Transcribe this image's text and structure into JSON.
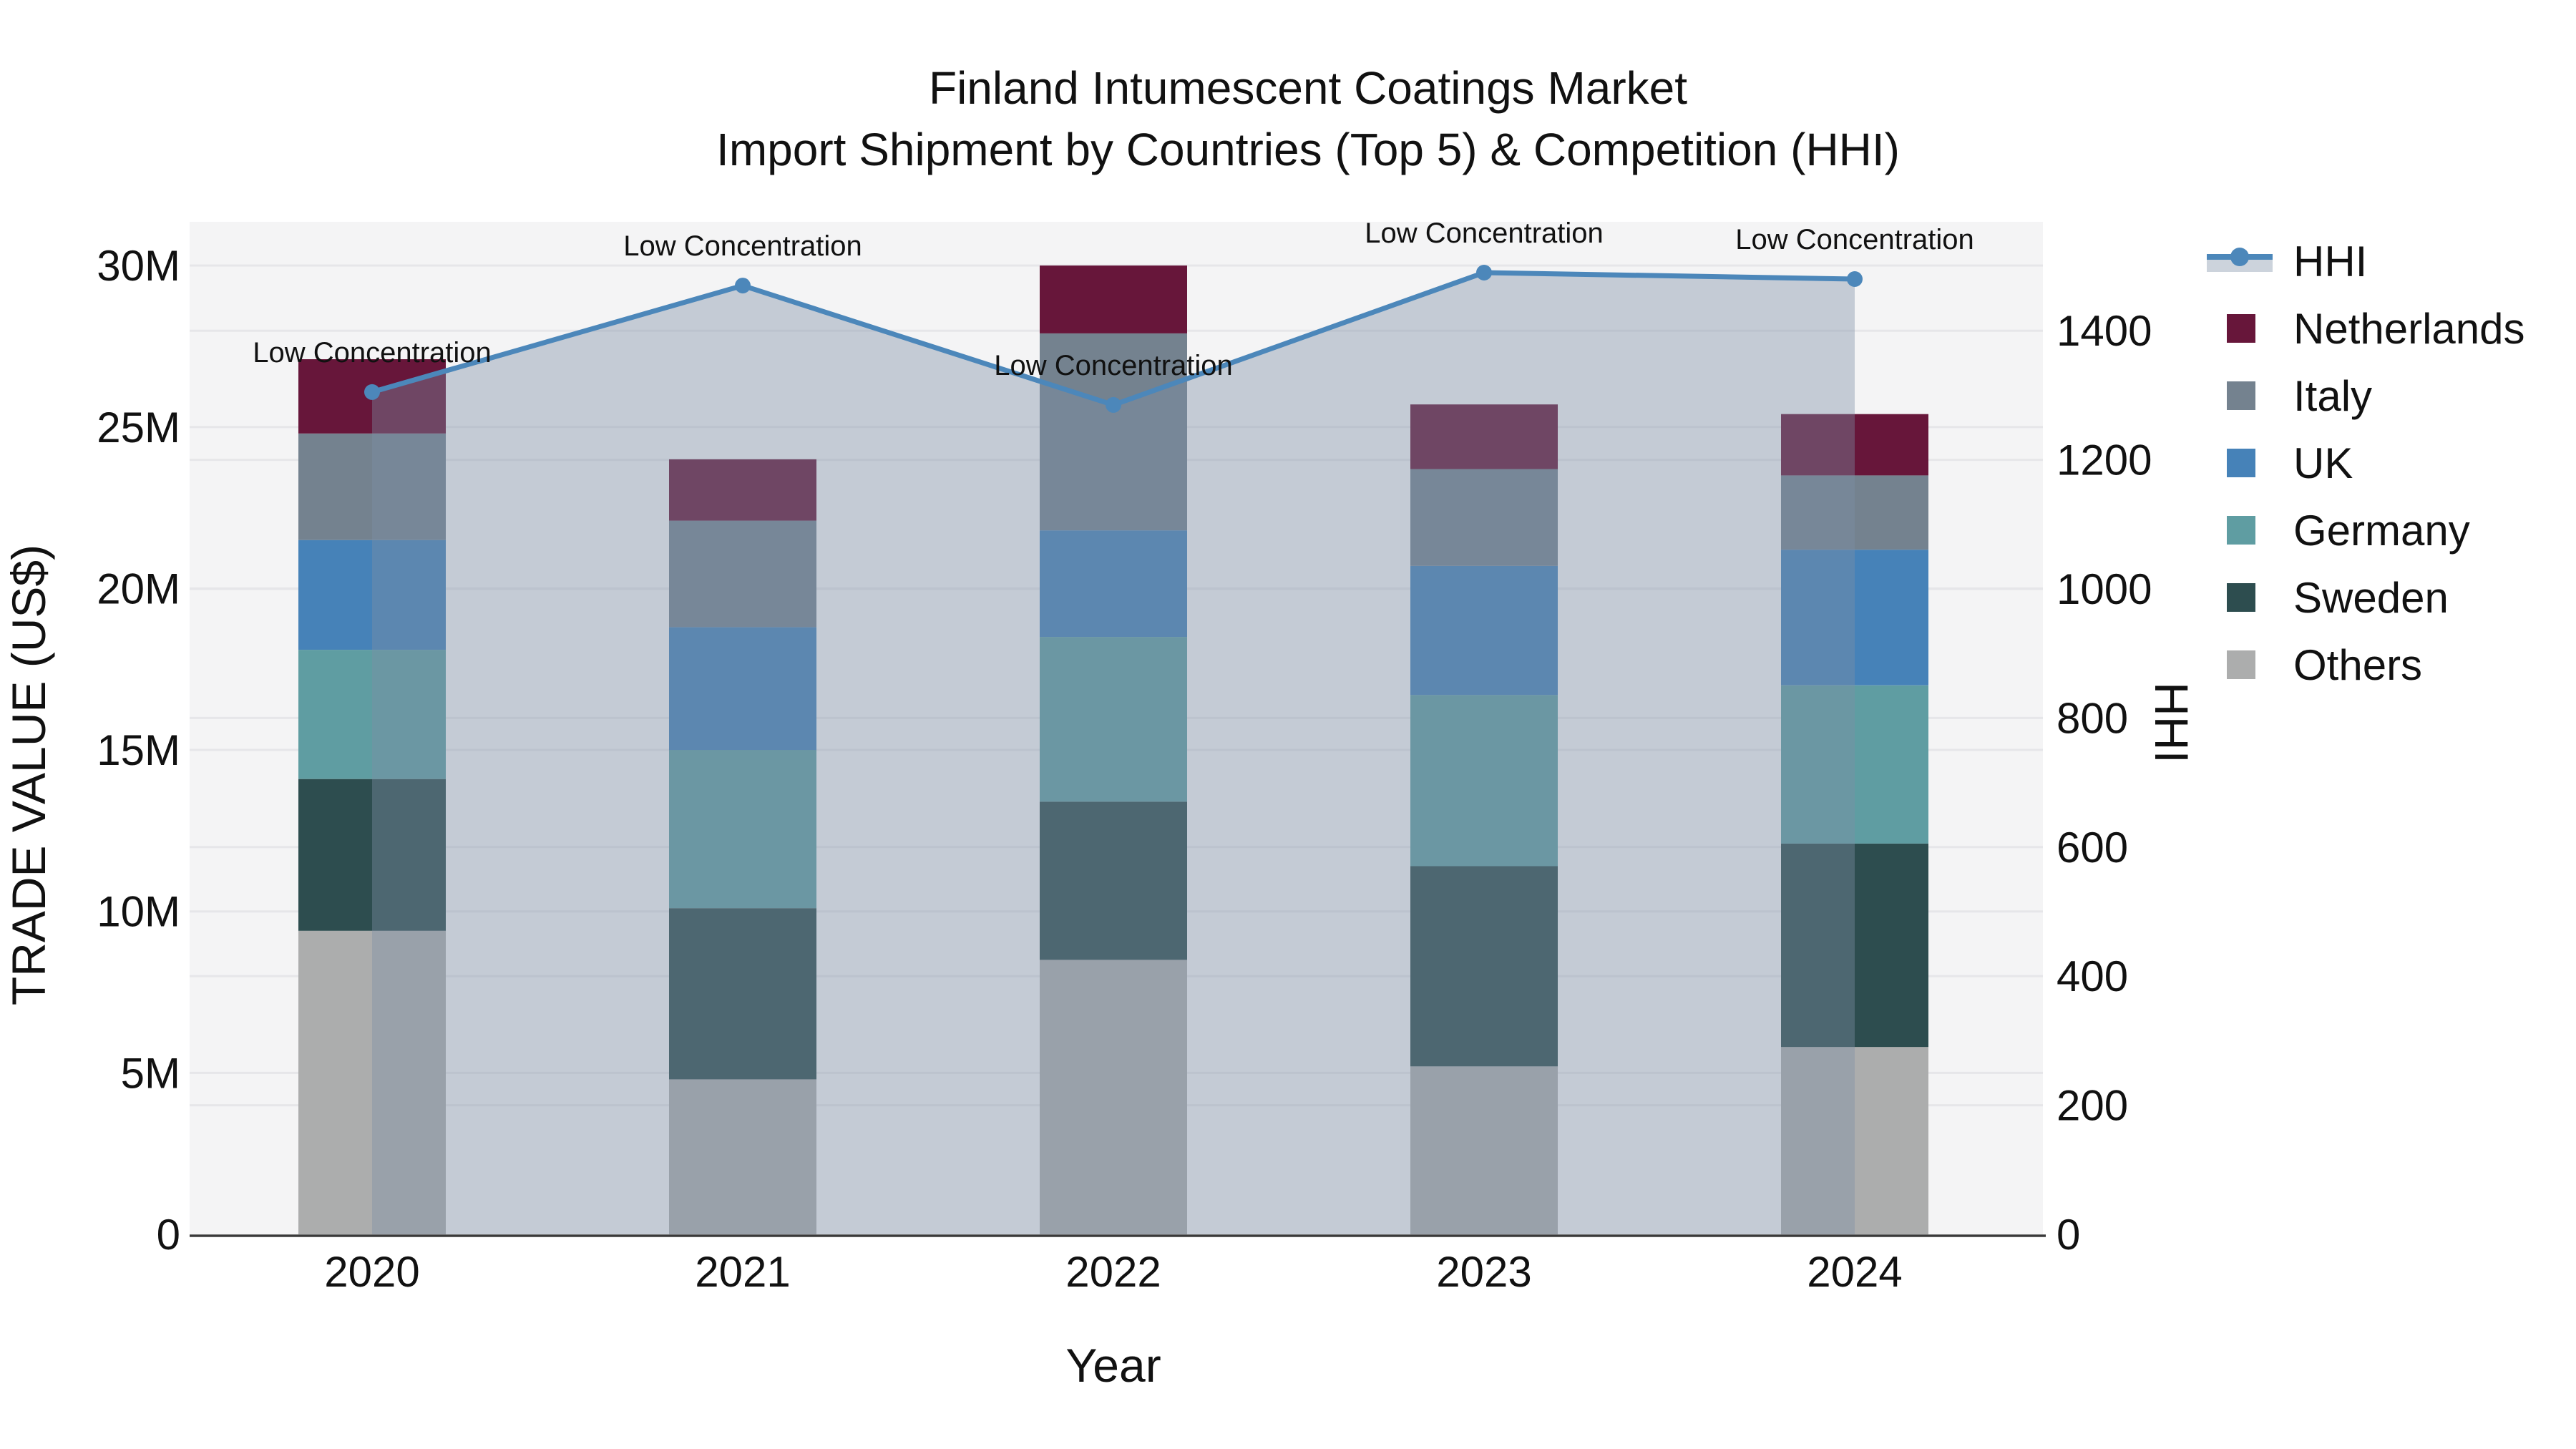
{
  "title": {
    "line1": "Finland Intumescent Coatings Market",
    "line2": "Import Shipment by Countries (Top 5) & Competition (HHI)"
  },
  "axes": {
    "x_title": "Year",
    "y_left_title": "TRADE VALUE (US$)",
    "y_right_title": "HHI",
    "y_left_tick_labels": [
      "0",
      "5M",
      "10M",
      "15M",
      "20M",
      "25M",
      "30M"
    ],
    "y_left_tick_values": [
      0,
      5,
      10,
      15,
      20,
      25,
      30
    ],
    "y_right_tick_labels": [
      "0",
      "200",
      "400",
      "600",
      "800",
      "1000",
      "1200",
      "1400"
    ],
    "y_right_tick_values": [
      0,
      200,
      400,
      600,
      800,
      1000,
      1200,
      1400
    ]
  },
  "legend": {
    "position": "right",
    "items": [
      {
        "label": "HHI",
        "type": "line",
        "color": "#4c87ba",
        "area_color": "#ccd3dc"
      },
      {
        "label": "Netherlands",
        "type": "swatch",
        "color": "#67163a"
      },
      {
        "label": "Italy",
        "type": "swatch",
        "color": "#74828f"
      },
      {
        "label": "UK",
        "type": "swatch",
        "color": "#4682b8"
      },
      {
        "label": "Germany",
        "type": "swatch",
        "color": "#5f9da2"
      },
      {
        "label": "Sweden",
        "type": "swatch",
        "color": "#2d4d4f"
      },
      {
        "label": "Others",
        "type": "swatch",
        "color": "#acadad"
      }
    ]
  },
  "chart_data": {
    "type": "stacked-bar+line",
    "title": "Finland Intumescent Coatings Market — Import Shipment by Countries (Top 5) & Competition (HHI)",
    "categories": [
      "2020",
      "2021",
      "2022",
      "2023",
      "2024"
    ],
    "unit_left": "Trade value, millions of US$",
    "unit_right": "HHI index",
    "xlabel": "Year",
    "ylabel_left": "TRADE VALUE (US$)",
    "ylabel_right": "HHI",
    "ylim_left": [
      0,
      31.4
    ],
    "ylim_right": [
      0,
      1570
    ],
    "grid": true,
    "legend_position": "right",
    "series": [
      {
        "name": "Others",
        "color": "#acadad",
        "values": [
          9.4,
          4.8,
          8.5,
          5.2,
          5.8
        ]
      },
      {
        "name": "Sweden",
        "color": "#2d4d4f",
        "values": [
          4.7,
          5.3,
          4.9,
          6.2,
          6.3
        ]
      },
      {
        "name": "Germany",
        "color": "#5f9da2",
        "values": [
          4.0,
          4.9,
          5.1,
          5.3,
          4.9
        ]
      },
      {
        "name": "UK",
        "color": "#4682b8",
        "values": [
          3.4,
          3.8,
          3.3,
          4.0,
          4.2
        ]
      },
      {
        "name": "Italy",
        "color": "#74828f",
        "values": [
          3.3,
          3.3,
          6.1,
          3.0,
          2.3
        ]
      },
      {
        "name": "Netherlands",
        "color": "#67163a",
        "values": [
          2.3,
          1.9,
          2.1,
          2.0,
          1.9
        ]
      }
    ],
    "bar_totals": [
      27.1,
      24.0,
      30.0,
      25.7,
      25.4
    ],
    "line": {
      "name": "HHI",
      "axis": "right",
      "color": "#4c87ba",
      "area_fill": "rgba(125,143,165,0.40)",
      "values": [
        1305,
        1470,
        1285,
        1490,
        1480
      ]
    },
    "annotations": [
      {
        "text": "Low Concentration",
        "category": "2020"
      },
      {
        "text": "Low Concentration",
        "category": "2021"
      },
      {
        "text": "Low Concentration",
        "category": "2022"
      },
      {
        "text": "Low Concentration",
        "category": "2023"
      },
      {
        "text": "Low Concentration",
        "category": "2024"
      }
    ],
    "colors": {
      "plot_background": "#f4f4f5",
      "gridline": "#e6e6e9",
      "axis_spine": "#3a3a3a",
      "text": "#111111"
    }
  }
}
